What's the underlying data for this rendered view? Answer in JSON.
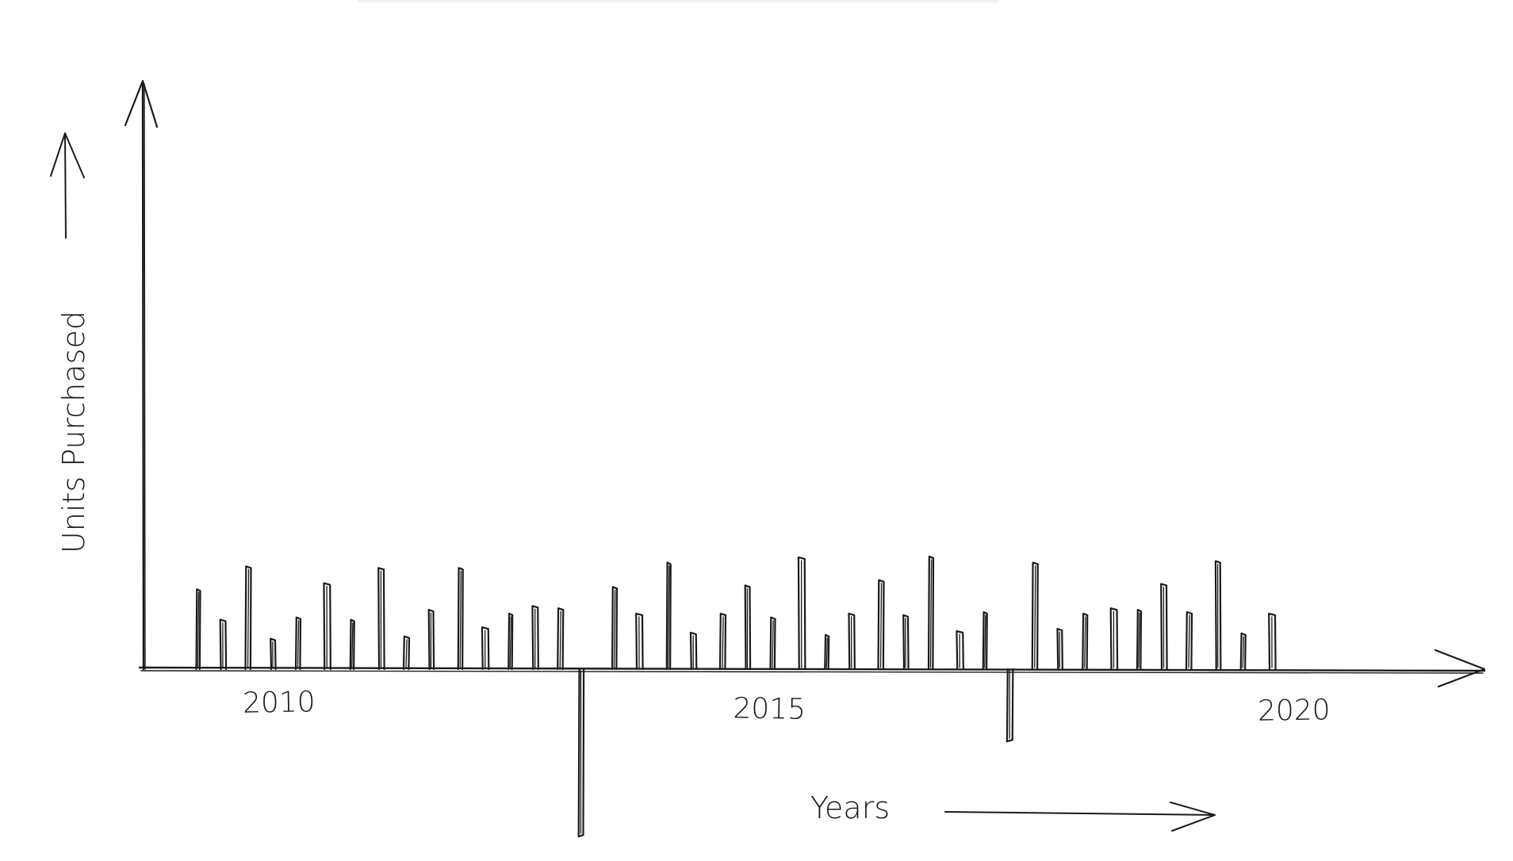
{
  "chart_data": {
    "type": "bar",
    "xlabel": "Years",
    "ylabel": "Units Purchased",
    "x_ticks": [
      2010,
      2015,
      2020
    ],
    "xlim": [
      2009.4,
      2020.9
    ],
    "ylim": [
      -2.0,
      7.5
    ],
    "grid": false,
    "series": [
      {
        "x": [
          2009.55,
          2009.85,
          2010.15,
          2010.45,
          2010.75,
          2011.1,
          2011.4,
          2011.75,
          2012.05,
          2012.35,
          2012.7,
          2013.0,
          2013.3,
          2013.6,
          2013.9,
          2014.15,
          2014.55,
          2014.85,
          2015.2,
          2015.5,
          2015.85,
          2016.15,
          2016.45,
          2016.8,
          2017.1,
          2017.4,
          2017.75,
          2018.05,
          2018.35,
          2018.7,
          2019.0,
          2019.3,
          2019.6,
          2019.9,
          2020.2,
          2020.55,
          2020.85,
          2021.15,
          2021.45,
          2021.8,
          2022.1,
          2022.45
        ],
        "values": [
          1.05,
          0.65,
          1.35,
          0.4,
          0.68,
          1.13,
          0.65,
          1.33,
          0.43,
          0.78,
          1.33,
          0.55,
          0.73,
          0.83,
          0.8,
          -2.2,
          1.08,
          0.73,
          1.4,
          0.48,
          0.73,
          1.1,
          0.68,
          1.47,
          0.45,
          0.73,
          1.17,
          0.71,
          1.48,
          0.5,
          0.75,
          -0.95,
          1.4,
          0.53,
          0.73,
          0.8,
          0.78,
          1.12,
          0.75,
          1.42,
          0.47,
          0.73
        ]
      }
    ]
  }
}
